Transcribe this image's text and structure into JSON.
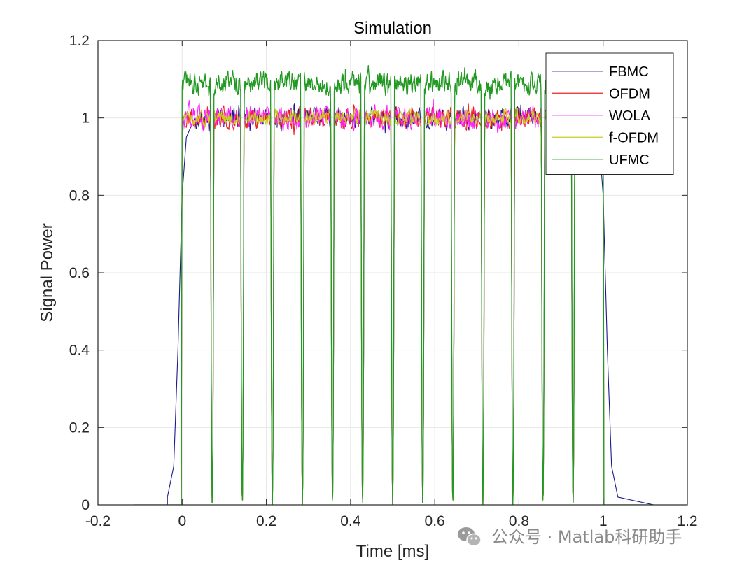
{
  "chart_data": {
    "type": "line",
    "title": "Simulation",
    "xlabel": "Time [ms]",
    "ylabel": "Signal Power",
    "xlim": [
      -0.2,
      1.2
    ],
    "ylim": [
      0,
      1.2
    ],
    "xticks": [
      -0.2,
      0,
      0.2,
      0.4,
      0.6,
      0.8,
      1,
      1.2
    ],
    "xtick_labels": [
      "-0.2",
      "0",
      "0.2",
      "0.4",
      "0.6",
      "0.8",
      "1",
      "1.2"
    ],
    "yticks": [
      0,
      0.2,
      0.4,
      0.6,
      0.8,
      1,
      1.2
    ],
    "ytick_labels": [
      "0",
      "0.2",
      "0.4",
      "0.6",
      "0.8",
      "1",
      "1.2"
    ],
    "grid": true,
    "legend_position": "top-right",
    "colors": {
      "FBMC": "#1a1a8c",
      "OFDM": "#ee2222",
      "WOLA": "#ff22ff",
      "f-OFDM": "#cccc22",
      "UFMC": "#229922"
    },
    "series": [
      {
        "name": "FBMC",
        "x_range": [
          -0.12,
          1.12
        ],
        "x_rise": [
          -0.035,
          -0.02,
          -0.01,
          0,
          0.01,
          0.03
        ],
        "y_rise": [
          0.02,
          0.1,
          0.4,
          0.8,
          0.95,
          1.0
        ],
        "x_fall": [
          0.97,
          0.99,
          1.0,
          1.01,
          1.02,
          1.035
        ],
        "y_fall": [
          1.0,
          0.95,
          0.8,
          0.4,
          0.1,
          0.02
        ],
        "level": 1.0,
        "noise_amplitude": 0.04
      },
      {
        "name": "OFDM",
        "x_range": [
          0,
          1
        ],
        "level": 1.0,
        "noise_amplitude": 0.04,
        "dip_centers": [
          0.0714,
          0.1429,
          0.2143,
          0.2857,
          0.3571,
          0.4286,
          0.5,
          0.5714,
          0.6429,
          0.7143,
          0.7857,
          0.8571,
          0.9286
        ]
      },
      {
        "name": "WOLA",
        "x_range": [
          0,
          1
        ],
        "level": 1.0,
        "noise_amplitude": 0.045
      },
      {
        "name": "f-OFDM",
        "x_range": [
          0,
          1
        ],
        "level": 1.0,
        "noise_amplitude": 0.03
      },
      {
        "name": "UFMC",
        "x_range": [
          0,
          1
        ],
        "level": 1.09,
        "noise_amplitude": 0.045,
        "dip_centers": [
          0.0714,
          0.1429,
          0.2143,
          0.2857,
          0.3571,
          0.4286,
          0.5,
          0.5714,
          0.6429,
          0.7143,
          0.7857,
          0.8571,
          0.9286
        ]
      }
    ]
  },
  "watermark": {
    "text": "公众号 · Matlab科研助手",
    "icon": "wechat-icon"
  }
}
